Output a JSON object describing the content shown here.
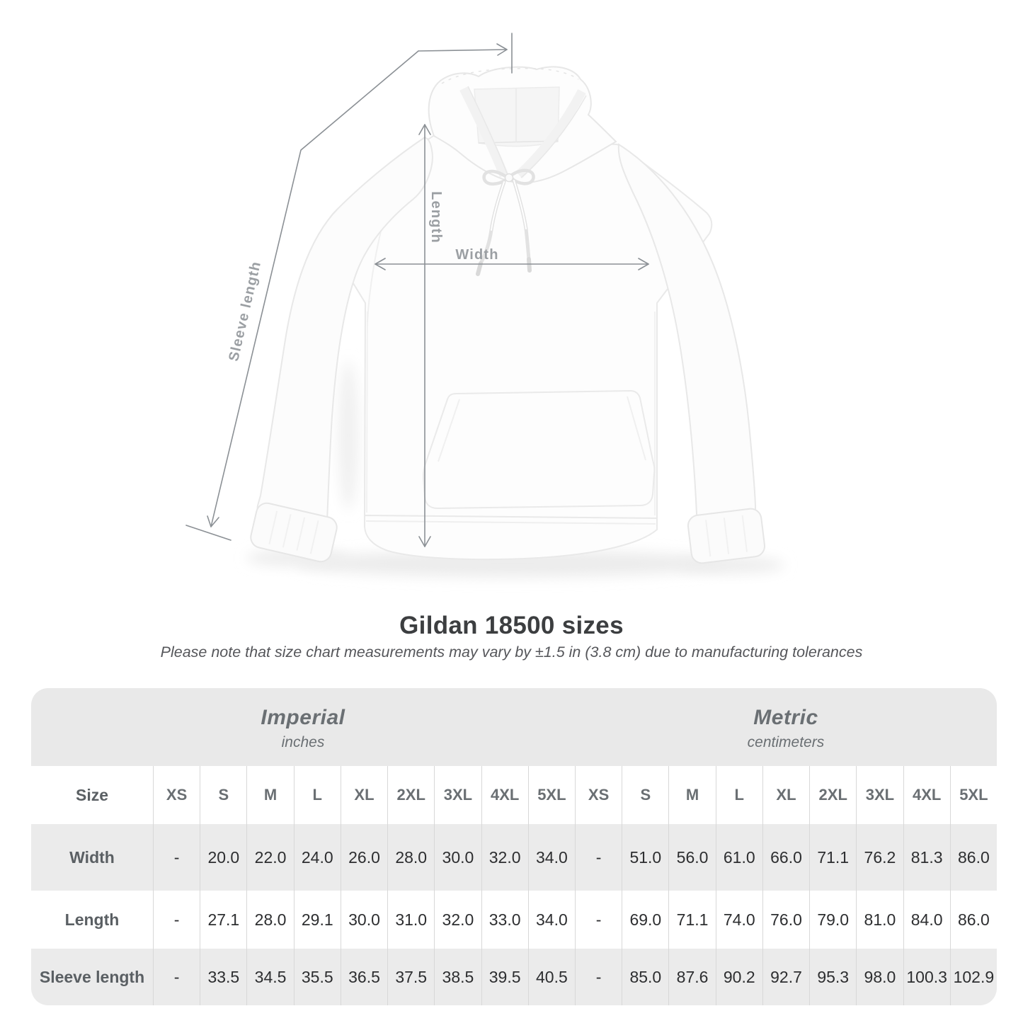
{
  "diagram": {
    "length_label": "Length",
    "width_label": "Width",
    "sleeve_length_label": "Sleeve length"
  },
  "heading": {
    "title": "Gildan 18500 sizes",
    "subtitle": "Please note that size chart measurements may vary by ±1.5 in (3.8 cm) due to manufacturing tolerances"
  },
  "table": {
    "sections": [
      {
        "name": "Imperial",
        "unit": "inches"
      },
      {
        "name": "Metric",
        "unit": "centimeters"
      }
    ],
    "size_column_header": "Size",
    "sizes": [
      "XS",
      "S",
      "M",
      "L",
      "XL",
      "2XL",
      "3XL",
      "4XL",
      "5XL"
    ],
    "rows": [
      {
        "label": "Width",
        "imperial": [
          "-",
          "20.0",
          "22.0",
          "24.0",
          "26.0",
          "28.0",
          "30.0",
          "32.0",
          "34.0"
        ],
        "metric": [
          "-",
          "51.0",
          "56.0",
          "61.0",
          "66.0",
          "71.1",
          "76.2",
          "81.3",
          "86.0"
        ]
      },
      {
        "label": "Length",
        "imperial": [
          "-",
          "27.1",
          "28.0",
          "29.1",
          "30.0",
          "31.0",
          "32.0",
          "33.0",
          "34.0"
        ],
        "metric": [
          "-",
          "69.0",
          "71.1",
          "74.0",
          "76.0",
          "79.0",
          "81.0",
          "84.0",
          "86.0"
        ]
      },
      {
        "label": "Sleeve length",
        "imperial": [
          "-",
          "33.5",
          "34.5",
          "35.5",
          "36.5",
          "37.5",
          "38.5",
          "39.5",
          "40.5"
        ],
        "metric": [
          "-",
          "85.0",
          "87.6",
          "90.2",
          "92.7",
          "95.3",
          "98.0",
          "100.3",
          "102.9"
        ]
      }
    ]
  },
  "colors": {
    "line": "#8b9095",
    "label": "#9b9fa3",
    "band": "#e9e9e9",
    "row-gray": "#ebebeb",
    "separator": "#d8d8d8",
    "title": "#3c3e40",
    "subtitle": "#55565a",
    "header-text": "#6a6f73",
    "value-text": "#2d2e30",
    "row-label-text": "#5a5f63"
  }
}
